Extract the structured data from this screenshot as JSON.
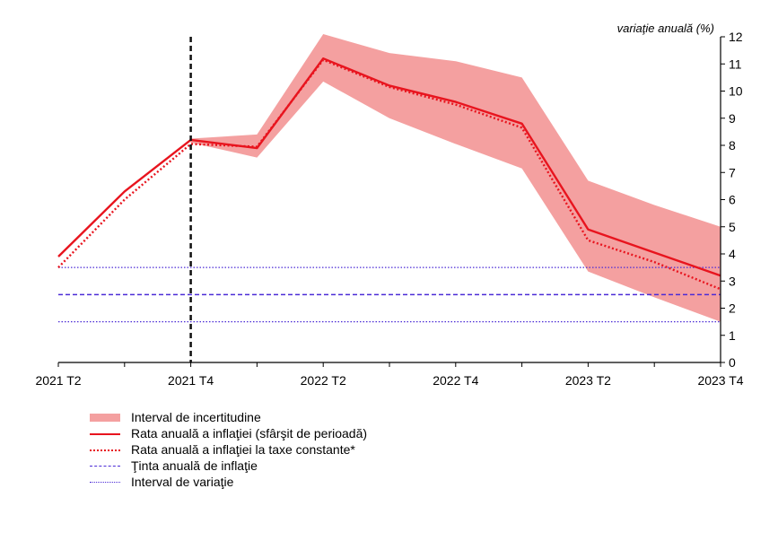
{
  "chart_data": {
    "type": "line",
    "unit_label": "variaţie anuală (%)",
    "categories": [
      "2021 T2",
      "2021 T3",
      "2021 T4",
      "2022 T1",
      "2022 T2",
      "2022 T3",
      "2022 T4",
      "2023 T1",
      "2023 T2",
      "2023 T3",
      "2023 T4"
    ],
    "x_tick_labels": [
      "2021 T2",
      "2021 T4",
      "2022 T2",
      "2022 T4",
      "2023 T2",
      "2023 T4"
    ],
    "ylim": [
      0,
      12
    ],
    "y_ticks": [
      0,
      1,
      2,
      3,
      4,
      5,
      6,
      7,
      8,
      9,
      10,
      11,
      12
    ],
    "y_axis_side": "right",
    "vertical_marker_category": "2021 T4",
    "band": {
      "name": "Interval de incertitudine",
      "start_category": "2021 T4",
      "upper": [
        8.25,
        8.4,
        12.1,
        11.4,
        11.1,
        10.5,
        6.7,
        5.8,
        5.0
      ],
      "lower": [
        8.1,
        7.55,
        10.35,
        9.0,
        8.05,
        7.15,
        3.35,
        2.4,
        1.5
      ]
    },
    "series": [
      {
        "name": "Rata anuală a inflaţiei (sfârşit de perioadă)",
        "style": "solid",
        "color": "#e8141e",
        "values": [
          3.9,
          6.3,
          8.2,
          7.9,
          11.2,
          10.2,
          9.6,
          8.8,
          4.9,
          4.05,
          3.2
        ]
      },
      {
        "name": "Rata anuală a inflaţiei la taxe constante*",
        "style": "dotted",
        "color": "#e8141e",
        "values": [
          3.5,
          6.0,
          8.05,
          7.95,
          11.15,
          10.15,
          9.5,
          8.65,
          4.5,
          3.7,
          2.7
        ]
      },
      {
        "name": "Ţinta anuală de inflaţie",
        "style": "dashed",
        "color": "#4b2bd6",
        "values": [
          2.5,
          2.5,
          2.5,
          2.5,
          2.5,
          2.5,
          2.5,
          2.5,
          2.5,
          2.5,
          2.5
        ]
      },
      {
        "name": "Interval de variaţie",
        "style": "dotted-thin",
        "color": "#4b2bd6",
        "values_upper": [
          3.5,
          3.5,
          3.5,
          3.5,
          3.5,
          3.5,
          3.5,
          3.5,
          3.5,
          3.5,
          3.5
        ],
        "values_lower": [
          1.5,
          1.5,
          1.5,
          1.5,
          1.5,
          1.5,
          1.5,
          1.5,
          1.5,
          1.5,
          1.5
        ]
      }
    ],
    "band_color": "#f4a0a0",
    "legend": [
      "Interval de incertitudine",
      "Rata anuală a inflaţiei (sfârşit de perioadă)",
      "Rata anuală a inflaţiei la taxe constante*",
      "Ţinta anuală de inflaţie",
      "Interval de variaţie"
    ],
    "legend_position": "bottom-left",
    "grid": false
  }
}
